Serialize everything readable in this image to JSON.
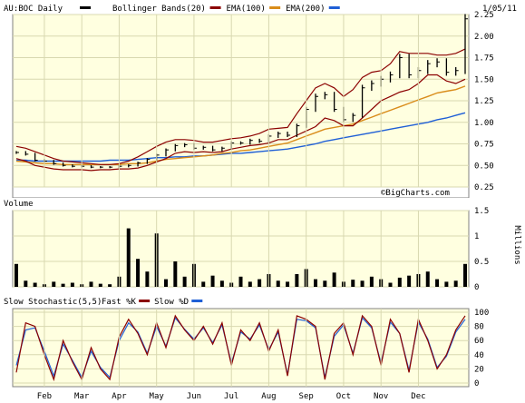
{
  "header": {
    "symbol": "AU:BOC Daily",
    "legend": [
      {
        "label": "Bollinger Bands(20)",
        "color": "#8b0000"
      },
      {
        "label": "EMA(100)",
        "color": "#d98c1a"
      },
      {
        "label": "EMA(200)",
        "color": "#1f5fd6"
      }
    ],
    "date": "1/05/11",
    "watermark": "©BigCharts.com"
  },
  "volume_panel": {
    "title": "Volume",
    "unit_label": "Millions"
  },
  "stochastic_panel": {
    "title": "Slow Stochastic(5,5)",
    "legend": [
      {
        "label": "Fast %K",
        "color": "#8b0000"
      },
      {
        "label": "Slow %D",
        "color": "#1f5fd6"
      }
    ]
  },
  "colors": {
    "panel_bg": "#ffffe0",
    "price_bar": "#000000",
    "bollinger": "#8b0000",
    "ema100": "#d98c1a",
    "ema200": "#1f5fd6",
    "volume": "#000000",
    "fast_k": "#8b0000",
    "slow_d": "#1f5fd6"
  },
  "chart_data": [
    {
      "type": "line",
      "name": "price",
      "x_labels": [
        "Feb",
        "Mar",
        "Apr",
        "May",
        "Jun",
        "Jul",
        "Aug",
        "Sep",
        "Oct",
        "Nov",
        "Dec"
      ],
      "x_range": [
        0,
        48
      ],
      "x_label_positions": [
        3,
        7,
        11,
        15,
        19,
        23,
        27,
        31,
        35,
        39,
        43
      ],
      "ylim": [
        0.25,
        2.25
      ],
      "yticks": [
        0.25,
        0.5,
        0.75,
        1.0,
        1.25,
        1.5,
        1.75,
        2.0,
        2.25
      ],
      "ytick_labels": [
        "0.25",
        "0.50",
        "0.75",
        "1.00",
        "1.25",
        "1.50",
        "1.75",
        "2.00",
        "2.25"
      ],
      "close": [
        0.65,
        0.63,
        0.56,
        0.55,
        0.52,
        0.5,
        0.49,
        0.49,
        0.48,
        0.48,
        0.48,
        0.49,
        0.5,
        0.53,
        0.57,
        0.62,
        0.68,
        0.73,
        0.74,
        0.7,
        0.71,
        0.68,
        0.7,
        0.76,
        0.76,
        0.79,
        0.78,
        0.84,
        0.87,
        0.85,
        0.96,
        1.15,
        1.3,
        1.32,
        1.15,
        1.03,
        1.08,
        1.4,
        1.45,
        1.5,
        1.55,
        1.75,
        1.55,
        1.6,
        1.68,
        1.7,
        1.58,
        1.6,
        2.2
      ],
      "bb_upper": [
        0.72,
        0.7,
        0.66,
        0.62,
        0.58,
        0.55,
        0.54,
        0.53,
        0.52,
        0.51,
        0.51,
        0.52,
        0.55,
        0.6,
        0.66,
        0.72,
        0.77,
        0.8,
        0.8,
        0.79,
        0.77,
        0.77,
        0.79,
        0.81,
        0.82,
        0.84,
        0.87,
        0.92,
        0.93,
        0.94,
        1.1,
        1.25,
        1.4,
        1.45,
        1.4,
        1.3,
        1.38,
        1.52,
        1.58,
        1.6,
        1.68,
        1.82,
        1.8,
        1.8,
        1.8,
        1.78,
        1.78,
        1.8,
        1.85
      ],
      "bb_lower": [
        0.58,
        0.55,
        0.5,
        0.48,
        0.46,
        0.45,
        0.45,
        0.45,
        0.44,
        0.45,
        0.45,
        0.46,
        0.46,
        0.47,
        0.5,
        0.54,
        0.58,
        0.64,
        0.66,
        0.65,
        0.66,
        0.65,
        0.66,
        0.69,
        0.71,
        0.73,
        0.74,
        0.76,
        0.8,
        0.8,
        0.85,
        0.9,
        0.95,
        1.05,
        1.02,
        0.96,
        0.96,
        1.05,
        1.15,
        1.25,
        1.3,
        1.35,
        1.38,
        1.45,
        1.55,
        1.55,
        1.48,
        1.45,
        1.5
      ],
      "ema100": [
        0.55,
        0.54,
        0.53,
        0.52,
        0.52,
        0.51,
        0.51,
        0.51,
        0.51,
        0.51,
        0.51,
        0.51,
        0.52,
        0.52,
        0.53,
        0.55,
        0.57,
        0.58,
        0.59,
        0.6,
        0.61,
        0.62,
        0.64,
        0.65,
        0.67,
        0.68,
        0.7,
        0.72,
        0.74,
        0.76,
        0.8,
        0.84,
        0.88,
        0.92,
        0.94,
        0.96,
        0.98,
        1.02,
        1.06,
        1.1,
        1.14,
        1.18,
        1.22,
        1.26,
        1.3,
        1.34,
        1.36,
        1.38,
        1.42
      ],
      "ema200": [
        0.56,
        0.56,
        0.55,
        0.55,
        0.55,
        0.55,
        0.55,
        0.55,
        0.55,
        0.55,
        0.56,
        0.56,
        0.56,
        0.57,
        0.58,
        0.59,
        0.59,
        0.6,
        0.6,
        0.61,
        0.61,
        0.62,
        0.63,
        0.64,
        0.64,
        0.65,
        0.66,
        0.67,
        0.68,
        0.69,
        0.71,
        0.73,
        0.75,
        0.78,
        0.8,
        0.82,
        0.84,
        0.86,
        0.88,
        0.9,
        0.92,
        0.94,
        0.96,
        0.98,
        1.0,
        1.03,
        1.05,
        1.08,
        1.11
      ]
    },
    {
      "type": "bar",
      "name": "volume",
      "ylim": [
        0,
        1.5
      ],
      "yticks": [
        0,
        0.5,
        1.0,
        1.5
      ],
      "ytick_labels": [
        "0",
        "0.5",
        "1",
        "1.5"
      ],
      "values": [
        0.45,
        0.12,
        0.08,
        0.05,
        0.1,
        0.06,
        0.08,
        0.05,
        0.1,
        0.06,
        0.05,
        0.2,
        1.15,
        0.55,
        0.3,
        1.05,
        0.15,
        0.5,
        0.2,
        0.45,
        0.1,
        0.22,
        0.12,
        0.08,
        0.2,
        0.1,
        0.15,
        0.25,
        0.12,
        0.1,
        0.25,
        0.35,
        0.15,
        0.12,
        0.28,
        0.1,
        0.14,
        0.12,
        0.2,
        0.15,
        0.08,
        0.18,
        0.22,
        0.25,
        0.3,
        0.15,
        0.1,
        0.12,
        0.45
      ]
    },
    {
      "type": "line",
      "name": "stochastic",
      "ylim": [
        0,
        100
      ],
      "yticks": [
        0,
        20,
        40,
        60,
        80,
        100
      ],
      "ytick_labels": [
        "0",
        "20",
        "40",
        "60",
        "80",
        "100"
      ],
      "fast_k": [
        15,
        85,
        80,
        40,
        5,
        60,
        30,
        5,
        50,
        20,
        5,
        65,
        90,
        70,
        40,
        85,
        50,
        95,
        75,
        60,
        80,
        55,
        85,
        25,
        75,
        60,
        85,
        45,
        75,
        10,
        95,
        90,
        80,
        5,
        70,
        85,
        40,
        95,
        80,
        25,
        90,
        70,
        15,
        90,
        60,
        20,
        40,
        75,
        95
      ],
      "slow_d": [
        25,
        75,
        78,
        45,
        10,
        55,
        32,
        8,
        45,
        22,
        8,
        60,
        85,
        72,
        42,
        80,
        52,
        92,
        76,
        62,
        78,
        57,
        82,
        28,
        72,
        62,
        82,
        47,
        72,
        12,
        90,
        88,
        78,
        8,
        66,
        82,
        42,
        92,
        78,
        28,
        86,
        70,
        18,
        86,
        62,
        22,
        38,
        72,
        90
      ]
    }
  ]
}
